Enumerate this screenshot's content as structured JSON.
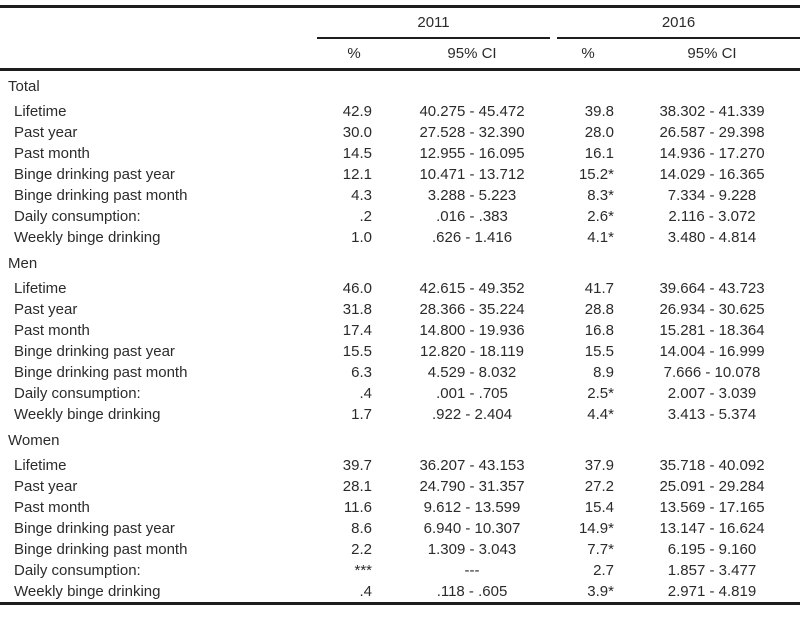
{
  "table": {
    "years": [
      "2011",
      "2016"
    ],
    "measure_headers": {
      "percent": "%",
      "ci": "95% CI"
    },
    "sections": [
      {
        "name": "Total",
        "rows": [
          {
            "label": "Lifetime",
            "y2011_pct": "42.9",
            "y2011_ci": "40.275 - 45.472",
            "y2016_pct": "39.8",
            "y2016_ci": "38.302 - 41.339"
          },
          {
            "label": "Past year",
            "y2011_pct": "30.0",
            "y2011_ci": "27.528 - 32.390",
            "y2016_pct": "28.0",
            "y2016_ci": "26.587 - 29.398"
          },
          {
            "label": "Past month",
            "y2011_pct": "14.5",
            "y2011_ci": "12.955 - 16.095",
            "y2016_pct": "16.1",
            "y2016_ci": "14.936 - 17.270"
          },
          {
            "label": "Binge drinking past year",
            "y2011_pct": "12.1",
            "y2011_ci": "10.471 - 13.712",
            "y2016_pct": "15.2*",
            "y2016_ci": "14.029 - 16.365"
          },
          {
            "label": "Binge drinking past month",
            "y2011_pct": "4.3",
            "y2011_ci": "3.288 - 5.223",
            "y2016_pct": "8.3*",
            "y2016_ci": "7.334 - 9.228"
          },
          {
            "label": "Daily consumption:",
            "y2011_pct": ".2",
            "y2011_ci": ".016 - .383",
            "y2016_pct": "2.6*",
            "y2016_ci": "2.116 - 3.072"
          },
          {
            "label": "Weekly binge drinking",
            "y2011_pct": "1.0",
            "y2011_ci": ".626 - 1.416",
            "y2016_pct": "4.1*",
            "y2016_ci": "3.480 - 4.814"
          }
        ]
      },
      {
        "name": "Men",
        "rows": [
          {
            "label": "Lifetime",
            "y2011_pct": "46.0",
            "y2011_ci": "42.615 - 49.352",
            "y2016_pct": "41.7",
            "y2016_ci": "39.664 - 43.723"
          },
          {
            "label": "Past year",
            "y2011_pct": "31.8",
            "y2011_ci": "28.366 - 35.224",
            "y2016_pct": "28.8",
            "y2016_ci": "26.934 - 30.625"
          },
          {
            "label": "Past month",
            "y2011_pct": "17.4",
            "y2011_ci": "14.800 - 19.936",
            "y2016_pct": "16.8",
            "y2016_ci": "15.281 - 18.364"
          },
          {
            "label": "Binge drinking past year",
            "y2011_pct": "15.5",
            "y2011_ci": "12.820 - 18.119",
            "y2016_pct": "15.5",
            "y2016_ci": "14.004 - 16.999"
          },
          {
            "label": "Binge drinking past month",
            "y2011_pct": "6.3",
            "y2011_ci": "4.529 - 8.032",
            "y2016_pct": "8.9",
            "y2016_ci": "7.666 - 10.078"
          },
          {
            "label": "Daily consumption:",
            "y2011_pct": ".4",
            "y2011_ci": ".001 - .705",
            "y2016_pct": "2.5*",
            "y2016_ci": "2.007 - 3.039"
          },
          {
            "label": "Weekly binge drinking",
            "y2011_pct": "1.7",
            "y2011_ci": ".922 - 2.404",
            "y2016_pct": "4.4*",
            "y2016_ci": "3.413 - 5.374"
          }
        ]
      },
      {
        "name": "Women",
        "rows": [
          {
            "label": "Lifetime",
            "y2011_pct": "39.7",
            "y2011_ci": "36.207 - 43.153",
            "y2016_pct": "37.9",
            "y2016_ci": "35.718 - 40.092"
          },
          {
            "label": "Past year",
            "y2011_pct": "28.1",
            "y2011_ci": "24.790 - 31.357",
            "y2016_pct": "27.2",
            "y2016_ci": "25.091 - 29.284"
          },
          {
            "label": "Past month",
            "y2011_pct": "11.6",
            "y2011_ci": "9.612 - 13.599",
            "y2016_pct": "15.4",
            "y2016_ci": "13.569 - 17.165"
          },
          {
            "label": "Binge drinking past year",
            "y2011_pct": "8.6",
            "y2011_ci": "6.940 - 10.307",
            "y2016_pct": "14.9*",
            "y2016_ci": "13.147 - 16.624"
          },
          {
            "label": "Binge drinking past month",
            "y2011_pct": "2.2",
            "y2011_ci": "1.309 - 3.043",
            "y2016_pct": "7.7*",
            "y2016_ci": "6.195 - 9.160"
          },
          {
            "label": "Daily consumption:",
            "y2011_pct": "***",
            "y2011_ci": "---",
            "y2016_pct": "2.7",
            "y2016_ci": "1.857 - 3.477"
          },
          {
            "label": "Weekly binge drinking",
            "y2011_pct": ".4",
            "y2011_ci": ".118 - .605",
            "y2016_pct": "3.9*",
            "y2016_ci": "2.971 - 4.819"
          }
        ]
      }
    ]
  }
}
